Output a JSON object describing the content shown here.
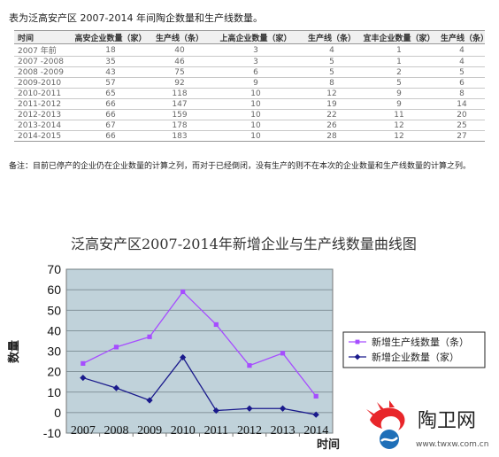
{
  "table": {
    "caption": "表为泛高安产区 2007-2014 年间陶企数量和生产线数量。",
    "headers": [
      "时间",
      "高安企业数量（家）",
      "生产线（条）",
      "上高企业数量（家）",
      "生产线（条）",
      "宜丰企业数量（家）",
      "生产线（条）"
    ],
    "rows": [
      [
        "2007 年前",
        "18",
        "40",
        "3",
        "4",
        "1",
        "4"
      ],
      [
        "2007 -2008",
        "35",
        "46",
        "3",
        "5",
        "1",
        "4"
      ],
      [
        "2008 -2009",
        "43",
        "75",
        "6",
        "5",
        "2",
        "5"
      ],
      [
        "2009-2010",
        "57",
        "92",
        "9",
        "8",
        "5",
        "6"
      ],
      [
        "2010-2011",
        "65",
        "118",
        "10",
        "12",
        "9",
        "8"
      ],
      [
        "2011-2012",
        "66",
        "147",
        "10",
        "19",
        "9",
        "14"
      ],
      [
        "2012-2013",
        "66",
        "159",
        "10",
        "22",
        "11",
        "20"
      ],
      [
        "2013-2014",
        "67",
        "178",
        "10",
        "26",
        "12",
        "25"
      ],
      [
        "2014-2015",
        "66",
        "183",
        "10",
        "28",
        "12",
        "27"
      ]
    ],
    "note": "备注：目前已停产的企业仍在企业数量的计算之列，而对于已经倒闭，没有生产的则不在本次的企业数量和生产线数量的计算之列。"
  },
  "chart_data": {
    "type": "line",
    "title": "泛高安产区2007-2014年新增企业与生产线数量曲线图",
    "xlabel": "时间",
    "ylabel": "数量",
    "x": [
      "2007",
      "2008",
      "2009",
      "2010",
      "2011",
      "2012",
      "2013",
      "2014"
    ],
    "ylim": [
      -10,
      70
    ],
    "yticks": [
      -10,
      0,
      10,
      20,
      30,
      40,
      50,
      60,
      70
    ],
    "grid": true,
    "legend_position": "right",
    "plot_background": "#c0d2da",
    "series": [
      {
        "name": "新增生产线数量（条）",
        "color": "#a64dff",
        "marker": "square",
        "values": [
          24,
          32,
          37,
          59,
          43,
          23,
          29,
          8
        ]
      },
      {
        "name": "新增企业数量（家）",
        "color": "#1a1a8c",
        "marker": "diamond",
        "values": [
          17,
          12,
          6,
          27,
          1,
          2,
          2,
          -1
        ]
      }
    ]
  },
  "watermark": {
    "text": "陶卫网",
    "url": "www.twxw.com.cn",
    "accent": "#e8262a"
  }
}
